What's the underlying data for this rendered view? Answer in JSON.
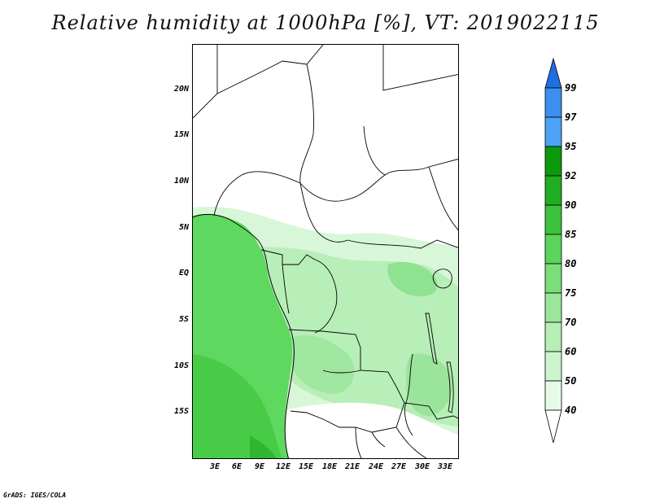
{
  "title": "Relative humidity at 1000hPa [%], VT: 2019022115",
  "footer": "GrADS: IGES/COLA",
  "map": {
    "lat_ticks": [
      "20N",
      "15N",
      "10N",
      "5N",
      "EQ",
      "5S",
      "10S",
      "15S"
    ],
    "lon_ticks": [
      "3E",
      "6E",
      "9E",
      "12E",
      "15E",
      "18E",
      "21E",
      "24E",
      "27E",
      "30E",
      "33E"
    ],
    "field": "relative humidity",
    "ocean_color": "#5fd85f"
  },
  "legend": {
    "labels": [
      "99",
      "97",
      "95",
      "92",
      "90",
      "85",
      "80",
      "75",
      "70",
      "60",
      "50",
      "40"
    ],
    "colors": {
      "above_95": [
        "#1e6fe0",
        "#3c8ef0",
        "#4ea2f5"
      ],
      "green_shades": [
        "#0b9a0b",
        "#22ae22",
        "#3cc23c",
        "#5ad45a",
        "#7ade7a",
        "#9ae69a",
        "#b6eeb6",
        "#cdf4cd",
        "#e6fbe6"
      ]
    }
  }
}
